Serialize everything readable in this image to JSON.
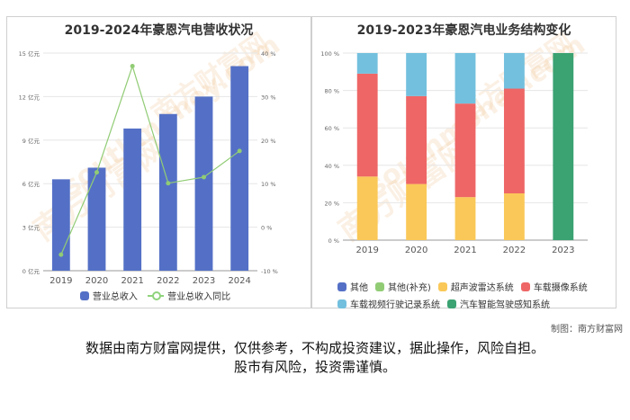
{
  "credit": "制图：南方财富网",
  "disclaimer": {
    "line1": "数据由南方财富网提供，仅供参考，不构成投资建议，据此操作，风险自担。",
    "line2": "股市有风险，投资需谨慎。"
  },
  "watermark": {
    "main": "南方财富网",
    "sub": "southmoney.com"
  },
  "chart_data": [
    {
      "type": "bar",
      "title": "2019-2024年豪恩汽电营收状况",
      "categories": [
        "2019",
        "2020",
        "2021",
        "2022",
        "2023",
        "2024"
      ],
      "series": [
        {
          "name": "营业总收入",
          "type": "bar",
          "axis": "left",
          "color": "#5470c6",
          "values": [
            6.3,
            7.1,
            9.8,
            10.8,
            12.0,
            14.1
          ]
        },
        {
          "name": "营业总收入同比",
          "type": "line",
          "axis": "right",
          "color": "#91cc75",
          "values": [
            -6.3,
            12.6,
            37.0,
            10.1,
            11.5,
            17.5
          ]
        }
      ],
      "y_left": {
        "min": 0,
        "max": 15,
        "ticks": [
          "0 亿元",
          "3 亿元",
          "6 亿元",
          "9 亿元",
          "12 亿元",
          "15 亿元"
        ]
      },
      "y_right": {
        "min": -10,
        "max": 40,
        "ticks": [
          "-10 %",
          "0 %",
          "10 %",
          "20 %",
          "30 %",
          "40 %"
        ]
      },
      "grid": true,
      "legend": "bottom"
    },
    {
      "type": "bar",
      "stacked": true,
      "title": "2019-2023年豪恩汽电业务结构变化",
      "categories": [
        "2019",
        "2020",
        "2021",
        "2022",
        "2023"
      ],
      "series": [
        {
          "name": "其他",
          "color": "#5470c6",
          "values": [
            0,
            0,
            0,
            0,
            0
          ]
        },
        {
          "name": "其他(补充)",
          "color": "#91cc75",
          "values": [
            0,
            0,
            0,
            0,
            0
          ]
        },
        {
          "name": "超声波雷达系统",
          "color": "#fac858",
          "values": [
            34,
            30,
            23,
            25,
            0
          ]
        },
        {
          "name": "车载摄像系统",
          "color": "#ee6666",
          "values": [
            55,
            47,
            50,
            56,
            0
          ]
        },
        {
          "name": "车载视频行驶记录系统",
          "color": "#73c0de",
          "values": [
            11,
            23,
            27,
            19,
            0
          ]
        },
        {
          "name": "汽车智能驾驶感知系统",
          "color": "#3ba272",
          "values": [
            0,
            0,
            0,
            0,
            100
          ]
        }
      ],
      "y": {
        "min": 0,
        "max": 100,
        "ticks": [
          "0 %",
          "20 %",
          "40 %",
          "60 %",
          "80 %",
          "100 %"
        ]
      },
      "grid": true,
      "legend": "bottom"
    }
  ]
}
